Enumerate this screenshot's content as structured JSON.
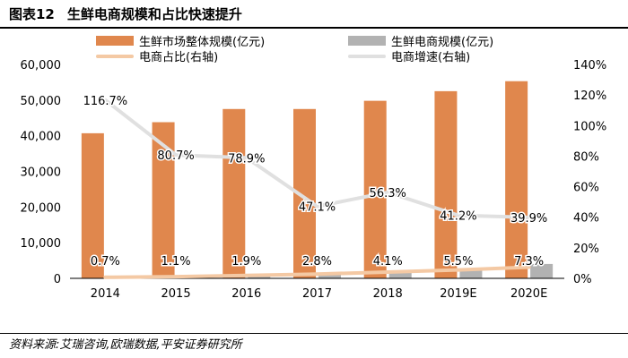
{
  "header": {
    "figure_number": "图表12",
    "title": "生鲜电商规模和占比快速提升"
  },
  "source": "资料来源:艾瑞咨询,欧瑞数据,平安证券研究所",
  "colors": {
    "market_bar": "#E0874D",
    "ecom_bar": "#B2B2B2",
    "share_line": "#F4C9A4",
    "growth_line": "#E0E0E0",
    "axis": "#000000"
  },
  "chart_data": {
    "type": "bar",
    "categories": [
      "2014",
      "2015",
      "2016",
      "2017",
      "2018",
      "2019E",
      "2020E"
    ],
    "series": [
      {
        "name": "生鲜市场整体规模(亿元)",
        "kind": "bar",
        "axis": "left",
        "values": [
          40700,
          43800,
          47500,
          47500,
          49800,
          52500,
          55300
        ]
      },
      {
        "name": "生鲜电商规模(亿元)",
        "kind": "bar",
        "axis": "left",
        "values": [
          290,
          480,
          900,
          1330,
          2030,
          2870,
          4040
        ]
      },
      {
        "name": "电商占比(右轴)",
        "kind": "line",
        "axis": "right",
        "values": [
          0.7,
          1.1,
          1.9,
          2.8,
          4.1,
          5.5,
          7.3
        ],
        "labels": [
          "0.7%",
          "1.1%",
          "1.9%",
          "2.8%",
          "4.1%",
          "5.5%",
          "7.3%"
        ]
      },
      {
        "name": "电商增速(右轴)",
        "kind": "line",
        "axis": "right",
        "values": [
          116.7,
          80.7,
          78.9,
          47.1,
          56.3,
          41.2,
          39.9
        ],
        "labels": [
          "116.7%",
          "80.7%",
          "78.9%",
          "47.1%",
          "56.3%",
          "41.2%",
          "39.9%"
        ]
      }
    ],
    "y_left": {
      "min": 0,
      "max": 60000,
      "ticks": [
        "0",
        "10,000",
        "20,000",
        "30,000",
        "40,000",
        "50,000",
        "60,000"
      ]
    },
    "y_right": {
      "min": 0,
      "max": 140,
      "ticks": [
        "0%",
        "20%",
        "40%",
        "60%",
        "80%",
        "100%",
        "120%",
        "140%"
      ]
    },
    "legend_position": "top"
  }
}
